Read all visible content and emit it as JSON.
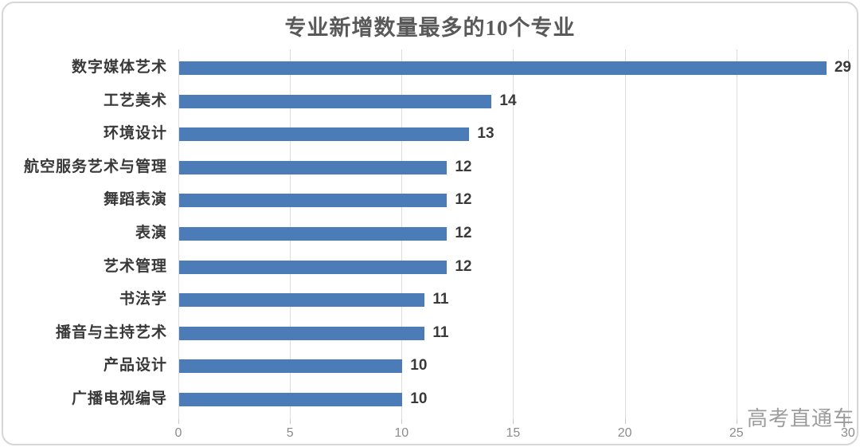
{
  "card": {
    "title": "专业新增数量最多的10个专业",
    "watermark": "高考直通车"
  },
  "colors": {
    "bar": "#4b7cb8",
    "title": "#595959",
    "category_label": "#383838",
    "value_label": "#3a3a3a",
    "axis_label": "#8c8c8c",
    "gridline": "#dcdcdc",
    "card_border": "#d6d6d6",
    "watermark": "#9c9c9c"
  },
  "chart_data": {
    "type": "bar",
    "orientation": "horizontal",
    "title": "专业新增数量最多的10个专业",
    "categories": [
      "数字媒体艺术",
      "工艺美术",
      "环境设计",
      "航空服务艺术与管理",
      "舞蹈表演",
      "表演",
      "艺术管理",
      "书法学",
      "播音与主持艺术",
      "产品设计",
      "广播电视编导"
    ],
    "values": [
      29,
      14,
      13,
      12,
      12,
      12,
      12,
      11,
      11,
      10,
      10
    ],
    "xlabel": "",
    "ylabel": "",
    "xlim": [
      0,
      30
    ],
    "x_ticks": [
      0,
      5,
      10,
      15,
      20,
      25,
      30
    ],
    "grid": "vertical gridlines only",
    "legend": "none",
    "data_labels": "value at end of each bar"
  }
}
